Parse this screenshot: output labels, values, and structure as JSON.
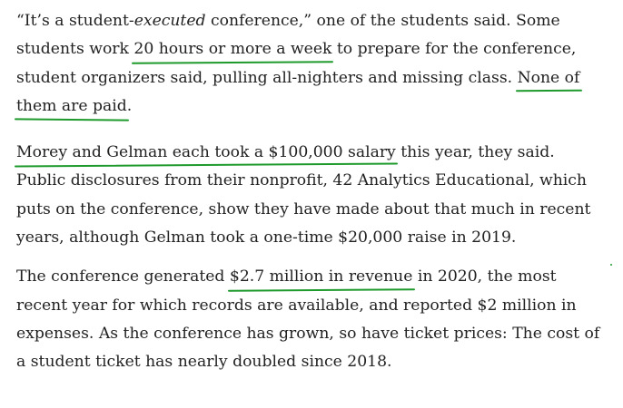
{
  "paragraphs": [
    {
      "lines": [
        {
          "before_em": "“It’s a student-",
          "em": "executed",
          "after_em": " conference,” one of the students said. Some"
        },
        {
          "before": "students work ",
          "highlight": "20 hours or more a week",
          "after": " to prepare for the conference,"
        },
        {
          "before": "student organizers said, pulling all-nighters and missing class. ",
          "highlight": "None of"
        },
        {
          "highlight": "them are paid",
          "after": "."
        }
      ]
    },
    {
      "lines": [
        {
          "highlight": "Morey and Gelman each took a $100,000 salary",
          "after": " this year, they said."
        },
        {
          "text": "Public disclosures from their nonprofit, 42 Analytics Educational, which"
        },
        {
          "text": "puts on the conference, show they have made about that much in recent"
        },
        {
          "text": "years, although Gelman took a one-time $20,000 raise in 2019."
        }
      ]
    },
    {
      "lines": [
        {
          "before": "The conference generated ",
          "highlight": "$2.7 million in revenue",
          "after": " in 2020, the most"
        },
        {
          "text": "recent year for which records are available, and reported $2 million in"
        },
        {
          "text": "expenses. As the conference has grown, so have ticket prices: The cost of"
        },
        {
          "text": "a student ticket has nearly doubled since 2018."
        }
      ]
    }
  ],
  "colors": {
    "text": "#222222",
    "highlight_underline": "#1e9a2c",
    "background": "#ffffff"
  }
}
